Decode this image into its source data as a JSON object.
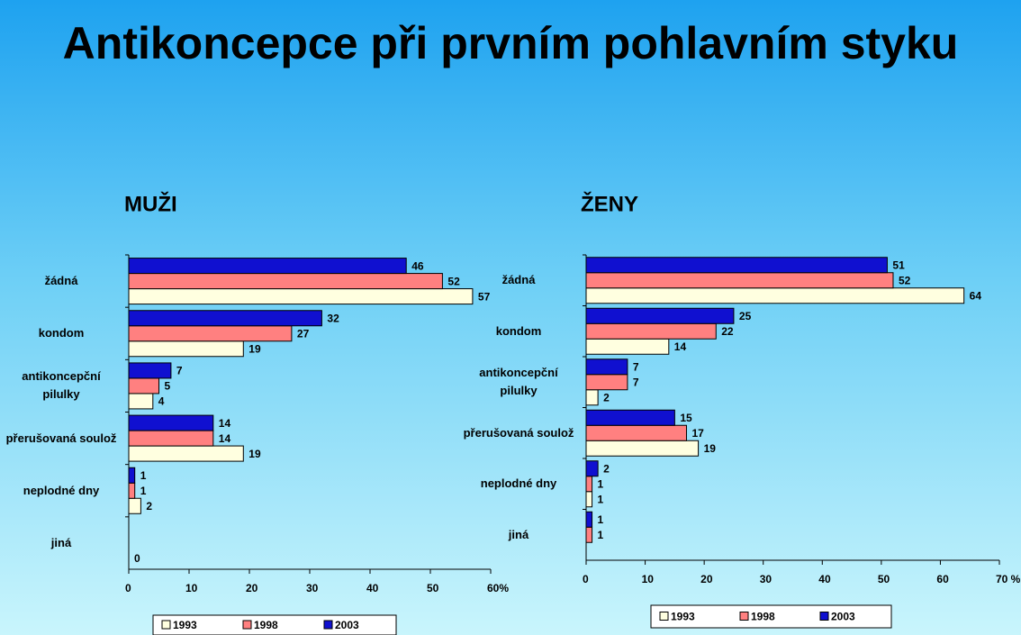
{
  "title": "Antikoncepce při prvním pohlavním styku",
  "chart_data": [
    {
      "type": "barh",
      "title": "MUŽI",
      "categories": [
        "žádná",
        "kondom",
        "antikoncepční pilulky",
        "přerušovaná soulož",
        "neplodné dny",
        "jiná"
      ],
      "series": [
        {
          "name": "1993",
          "color": "#ffffe0",
          "values": [
            57,
            19,
            4,
            19,
            2,
            0
          ]
        },
        {
          "name": "1998",
          "color": "#ff8080",
          "values": [
            52,
            27,
            5,
            14,
            1,
            null
          ]
        },
        {
          "name": "2003",
          "color": "#1010d0",
          "values": [
            46,
            32,
            7,
            14,
            1,
            null
          ]
        }
      ],
      "xlim": [
        0,
        60
      ],
      "xticks": [
        0,
        10,
        20,
        30,
        40,
        50,
        {
          "value": 60,
          "label": "60%"
        }
      ],
      "legend": "bottom"
    },
    {
      "type": "barh",
      "title": "ŽENY",
      "categories": [
        "žádná",
        "kondom",
        "antikoncepční pilulky",
        "přerušovaná soulož",
        "neplodné dny",
        "jiná"
      ],
      "series": [
        {
          "name": "1993",
          "color": "#ffffe0",
          "values": [
            64,
            14,
            2,
            19,
            1,
            null
          ]
        },
        {
          "name": "1998",
          "color": "#ff8080",
          "values": [
            52,
            22,
            7,
            17,
            1,
            1
          ]
        },
        {
          "name": "2003",
          "color": "#1010d0",
          "values": [
            51,
            25,
            7,
            15,
            2,
            1
          ]
        }
      ],
      "xlim": [
        0,
        70
      ],
      "xticks": [
        0,
        10,
        20,
        30,
        40,
        50,
        60,
        {
          "value": 70,
          "label": "70 %"
        }
      ],
      "legend": "bottom"
    }
  ]
}
